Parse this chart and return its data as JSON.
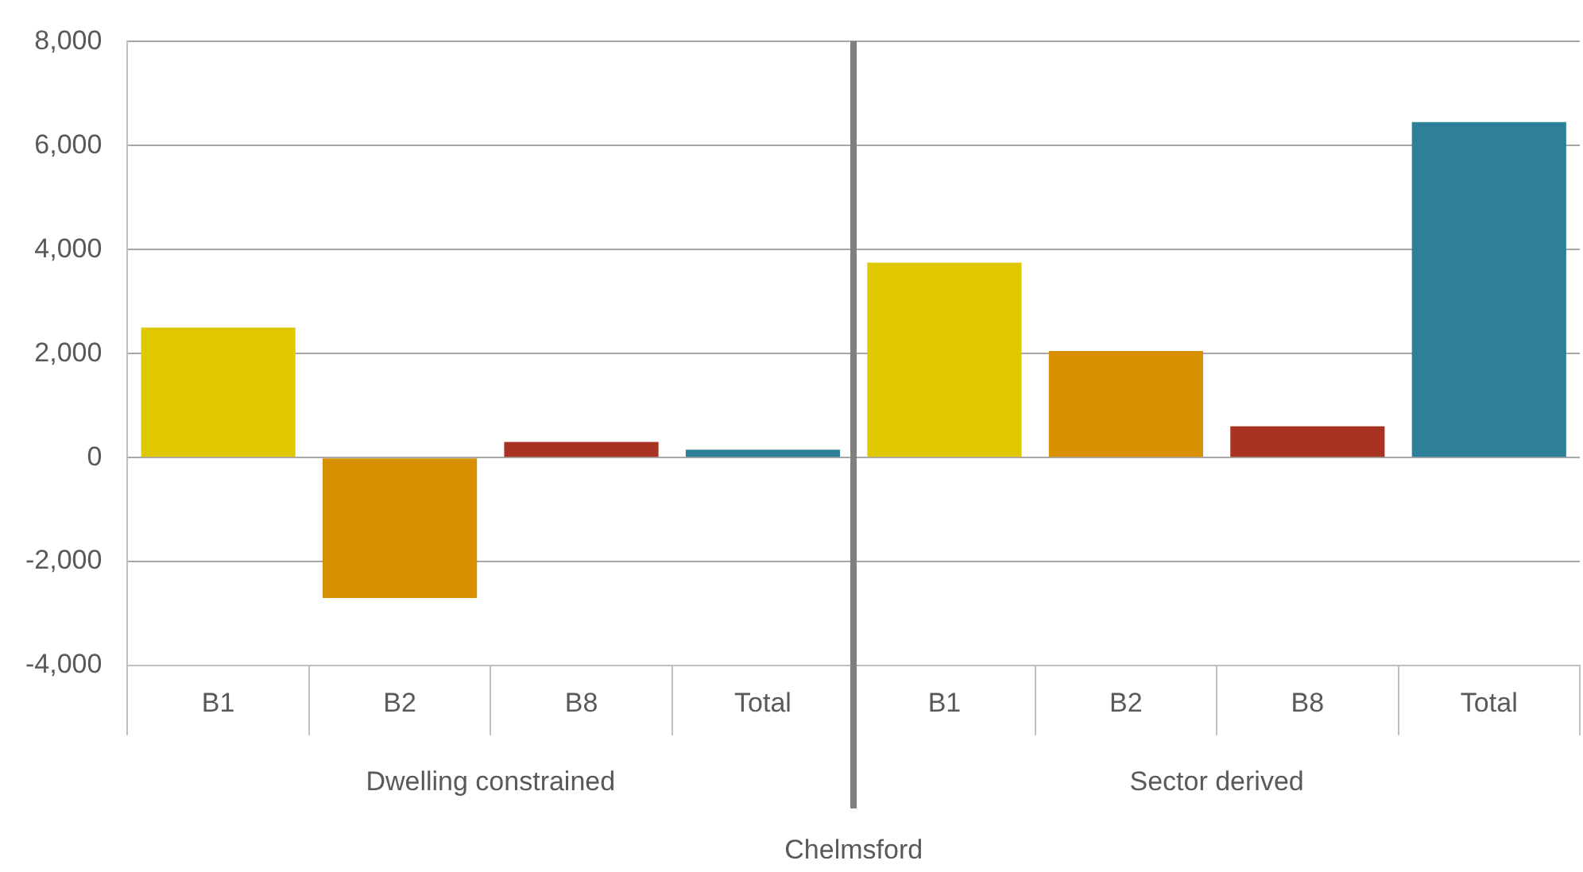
{
  "chart_data": {
    "type": "bar",
    "xlabel": "Chelmsford",
    "categories": [
      "B1",
      "B2",
      "B8",
      "Total",
      "B1",
      "B2",
      "B8",
      "Total"
    ],
    "values": [
      2500,
      -2700,
      300,
      150,
      3750,
      2050,
      600,
      6450
    ],
    "colors": [
      "#dfc800",
      "#d99000",
      "#a93222",
      "#2e7f9a",
      "#dfc800",
      "#d99000",
      "#a93222",
      "#2e7f9a"
    ],
    "annotations": [
      "Dwelling constrained",
      "Sector derived"
    ],
    "ylim": [
      -4000,
      8000
    ],
    "yticks": [
      {
        "value": -4000,
        "label": "-4,000"
      },
      {
        "value": -2000,
        "label": "-2,000"
      },
      0,
      {
        "value": 2000,
        "label": "2,000"
      },
      {
        "value": 4000,
        "label": "4,000"
      },
      {
        "value": 6000,
        "label": "6,000"
      },
      {
        "value": 8000,
        "label": "8,000"
      }
    ],
    "grid": "y",
    "legend": false
  }
}
